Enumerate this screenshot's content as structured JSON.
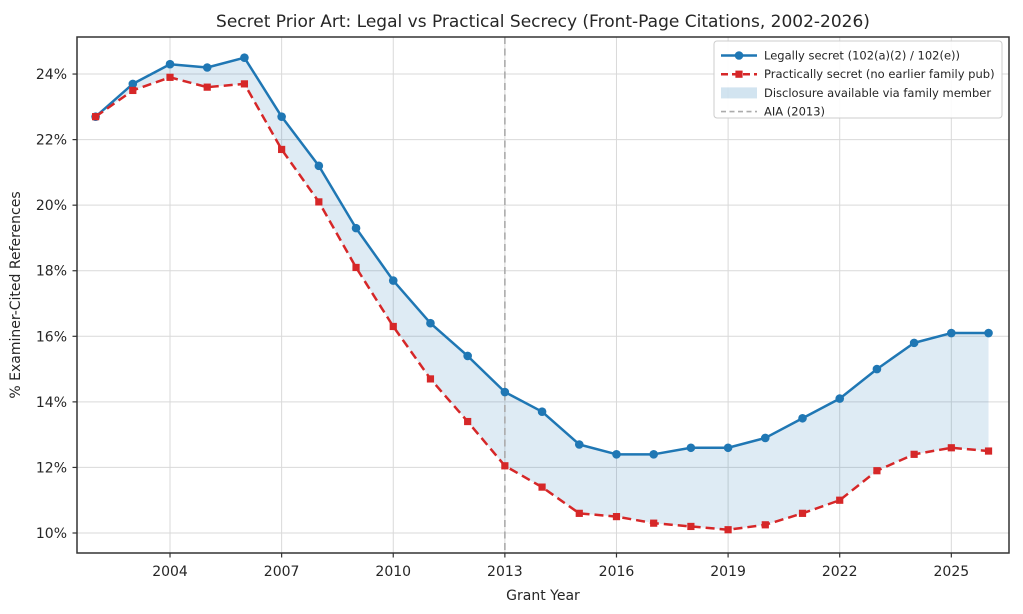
{
  "chart_data": {
    "type": "line",
    "title": "Secret Prior Art: Legal vs Practical Secrecy (Front-Page Citations, 2002-2026)",
    "xlabel": "Grant Year",
    "ylabel": "% Examiner-Cited References",
    "x": [
      2002,
      2003,
      2004,
      2005,
      2006,
      2007,
      2008,
      2009,
      2010,
      2011,
      2012,
      2013,
      2014,
      2015,
      2016,
      2017,
      2018,
      2019,
      2020,
      2021,
      2022,
      2023,
      2024,
      2025,
      2026
    ],
    "series": [
      {
        "name": "Legally secret (102(a)(2) / 102(e))",
        "color": "#1f77b4",
        "marker": "circle",
        "line_style": "solid",
        "values": [
          22.7,
          23.7,
          24.3,
          24.2,
          24.5,
          22.7,
          21.2,
          19.3,
          17.7,
          16.4,
          15.4,
          14.3,
          13.7,
          12.7,
          12.4,
          12.4,
          12.6,
          12.6,
          12.9,
          13.5,
          14.1,
          15.0,
          15.8,
          16.1,
          16.1
        ]
      },
      {
        "name": "Practically secret (no earlier family pub)",
        "color": "#d62728",
        "marker": "square",
        "line_style": "dashed",
        "values": [
          22.7,
          23.5,
          23.9,
          23.6,
          23.7,
          21.7,
          20.1,
          18.1,
          16.3,
          14.7,
          13.4,
          12.05,
          11.4,
          10.6,
          10.5,
          10.3,
          10.2,
          10.1,
          10.25,
          10.6,
          11.0,
          11.9,
          12.4,
          12.6,
          12.5
        ]
      }
    ],
    "fill_between": {
      "label": "Disclosure available via family member",
      "color": "#1f77b4",
      "opacity": 0.15
    },
    "vline": {
      "label": "AIA (2013)",
      "x": 2013,
      "color": "#ababab",
      "style": "dashed"
    },
    "legend": {
      "position": "upper right",
      "items": [
        "Legally secret (102(a)(2) / 102(e))",
        "Practically secret (no earlier family pub)",
        "Disclosure available via family member",
        "AIA (2013)"
      ]
    },
    "x_ticks": [
      2004,
      2007,
      2010,
      2013,
      2016,
      2019,
      2022,
      2025
    ],
    "x_tick_labels": [
      "2004",
      "2007",
      "2010",
      "2013",
      "2016",
      "2019",
      "2022",
      "2025"
    ],
    "y_ticks": [
      10,
      12,
      14,
      16,
      18,
      20,
      22,
      24
    ],
    "y_tick_labels": [
      "10%",
      "12%",
      "14%",
      "16%",
      "18%",
      "20%",
      "22%",
      "24%"
    ],
    "xlim": [
      2001.5,
      2026.55
    ],
    "ylim": [
      9.39,
      25.13
    ],
    "grid": true,
    "grid_color": "#d9d9d9",
    "spine_color": "#333333",
    "background": "#ffffff"
  }
}
